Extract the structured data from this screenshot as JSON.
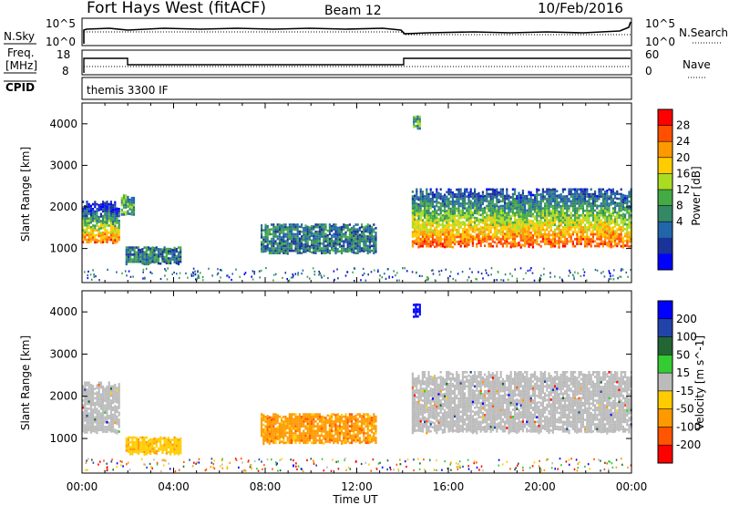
{
  "header": {
    "station": "Fort Hays West (fitACF)",
    "beam": "Beam 12",
    "date": "10/Feb/2016"
  },
  "summary_panels": {
    "nsky": {
      "label": "N.Sky",
      "right_label": "N.Search",
      "left_ticks": [
        "10^5",
        "10^0"
      ],
      "right_ticks": [
        "10^5",
        "10^0"
      ]
    },
    "freq": {
      "label_line1": "Freq.",
      "label_line2": "[MHz]",
      "left_ticks": [
        "18",
        "8"
      ],
      "right_label": "Nave",
      "right_ticks": [
        "60",
        "0"
      ]
    },
    "cpid": {
      "label": "CPID",
      "program": "themis 3300 IF"
    }
  },
  "colorbars": {
    "power": {
      "label": "Power [dB]",
      "ticks": [
        "28",
        "24",
        "20",
        "16",
        "12",
        "8",
        "4"
      ],
      "colors": [
        "#ff0000",
        "#ff5000",
        "#ff9900",
        "#ffcc00",
        "#aadd22",
        "#44aa44",
        "#338866",
        "#2266aa",
        "#1a3399",
        "#0000ff"
      ]
    },
    "velocity": {
      "label": "Velocity [m s^-1]",
      "ticks": [
        "200",
        "100",
        "50",
        "15",
        "-15",
        "-50",
        "-100",
        "-200"
      ],
      "colors": [
        "#0000ff",
        "#2244aa",
        "#226633",
        "#33cc33",
        "#bbbbbb",
        "#ffcc00",
        "#ff9900",
        "#ff5500",
        "#ff0000"
      ]
    }
  },
  "chart_data": [
    {
      "type": "heatmap",
      "name": "power",
      "ylabel": "Slant Range [km]",
      "xlabel": "Time UT",
      "xlim": [
        0,
        24
      ],
      "ylim": [
        180,
        4500
      ],
      "y_ticks": [
        "1000",
        "2000",
        "3000",
        "4000"
      ],
      "x_ticks": [
        "00:00",
        "04:00",
        "08:00",
        "12:00",
        "16:00",
        "20:00",
        "00:00"
      ],
      "regions": [
        {
          "t": [
            0.0,
            1.6
          ],
          "r": [
            1150,
            2150
          ],
          "level": "mixed_high"
        },
        {
          "t": [
            1.7,
            2.3
          ],
          "r": [
            1800,
            2300
          ],
          "level": "mid"
        },
        {
          "t": [
            1.9,
            4.3
          ],
          "r": [
            650,
            1050
          ],
          "level": "low"
        },
        {
          "t": [
            7.8,
            12.8
          ],
          "r": [
            900,
            1600
          ],
          "level": "low"
        },
        {
          "t": [
            14.4,
            24.0
          ],
          "r": [
            1050,
            2450
          ],
          "level": "high"
        },
        {
          "t": [
            14.45,
            14.8
          ],
          "r": [
            3900,
            4200
          ],
          "level": "mid"
        }
      ]
    },
    {
      "type": "heatmap",
      "name": "velocity",
      "ylabel": "Slant Range [km]",
      "xlabel": "Time UT",
      "xlim": [
        0,
        24
      ],
      "ylim": [
        180,
        4500
      ],
      "y_ticks": [
        "1000",
        "2000",
        "3000",
        "4000"
      ],
      "x_ticks": [
        "00:00",
        "04:00",
        "08:00",
        "12:00",
        "16:00",
        "20:00",
        "00:00"
      ],
      "regions": [
        {
          "t": [
            0.0,
            1.6
          ],
          "r": [
            1150,
            2350
          ],
          "velocity": "-15 to 15"
        },
        {
          "t": [
            1.9,
            4.3
          ],
          "r": [
            650,
            1050
          ],
          "velocity": "-50 to -15"
        },
        {
          "t": [
            7.8,
            12.8
          ],
          "r": [
            900,
            1600
          ],
          "velocity": "-100 to -50"
        },
        {
          "t": [
            14.4,
            24.0
          ],
          "r": [
            1150,
            2600
          ],
          "velocity": "-15 to 15"
        },
        {
          "t": [
            14.45,
            14.8
          ],
          "r": [
            3900,
            4200
          ],
          "velocity": "> 200"
        }
      ]
    }
  ]
}
